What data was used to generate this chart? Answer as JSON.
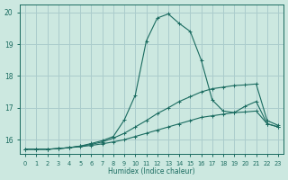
{
  "xlabel": "Humidex (Indice chaleur)",
  "bg_color": "#cce8e0",
  "grid_color": "#aacccc",
  "line_color": "#1a6b60",
  "x_ticks": [
    0,
    1,
    2,
    3,
    4,
    5,
    6,
    7,
    8,
    9,
    10,
    11,
    12,
    13,
    14,
    15,
    16,
    17,
    18,
    19,
    20,
    21,
    22,
    23
  ],
  "y_ticks": [
    16,
    17,
    18,
    19,
    20
  ],
  "ylim": [
    15.55,
    20.25
  ],
  "xlim": [
    -0.5,
    23.5
  ],
  "series": [
    {
      "x": [
        0,
        1,
        2,
        3,
        4,
        5,
        6,
        7,
        8,
        9,
        10,
        11,
        12,
        13,
        14,
        15,
        16,
        17,
        18,
        19,
        20,
        21,
        22,
        23
      ],
      "y": [
        15.7,
        15.7,
        15.7,
        15.72,
        15.75,
        15.78,
        15.82,
        15.87,
        15.93,
        16.0,
        16.1,
        16.2,
        16.3,
        16.4,
        16.5,
        16.6,
        16.7,
        16.75,
        16.8,
        16.85,
        16.87,
        16.9,
        16.5,
        16.4
      ]
    },
    {
      "x": [
        0,
        1,
        2,
        3,
        4,
        5,
        6,
        7,
        8,
        9,
        10,
        11,
        12,
        13,
        14,
        15,
        16,
        17,
        18,
        19,
        20,
        21,
        22,
        23
      ],
      "y": [
        15.7,
        15.7,
        15.7,
        15.72,
        15.75,
        15.8,
        15.85,
        15.93,
        16.05,
        16.2,
        16.4,
        16.6,
        16.82,
        17.0,
        17.2,
        17.35,
        17.5,
        17.6,
        17.65,
        17.7,
        17.72,
        17.75,
        16.6,
        16.45
      ]
    },
    {
      "x": [
        0,
        1,
        2,
        3,
        4,
        5,
        6,
        7,
        8,
        9,
        10,
        11,
        12,
        13,
        14,
        15,
        16,
        17,
        18,
        19,
        20,
        21,
        22,
        23
      ],
      "y": [
        15.7,
        15.7,
        15.7,
        15.72,
        15.75,
        15.8,
        15.88,
        15.97,
        16.1,
        16.62,
        17.4,
        19.1,
        19.82,
        19.95,
        19.65,
        19.4,
        18.5,
        17.25,
        16.9,
        16.85,
        17.05,
        17.2,
        16.5,
        16.4
      ]
    }
  ]
}
